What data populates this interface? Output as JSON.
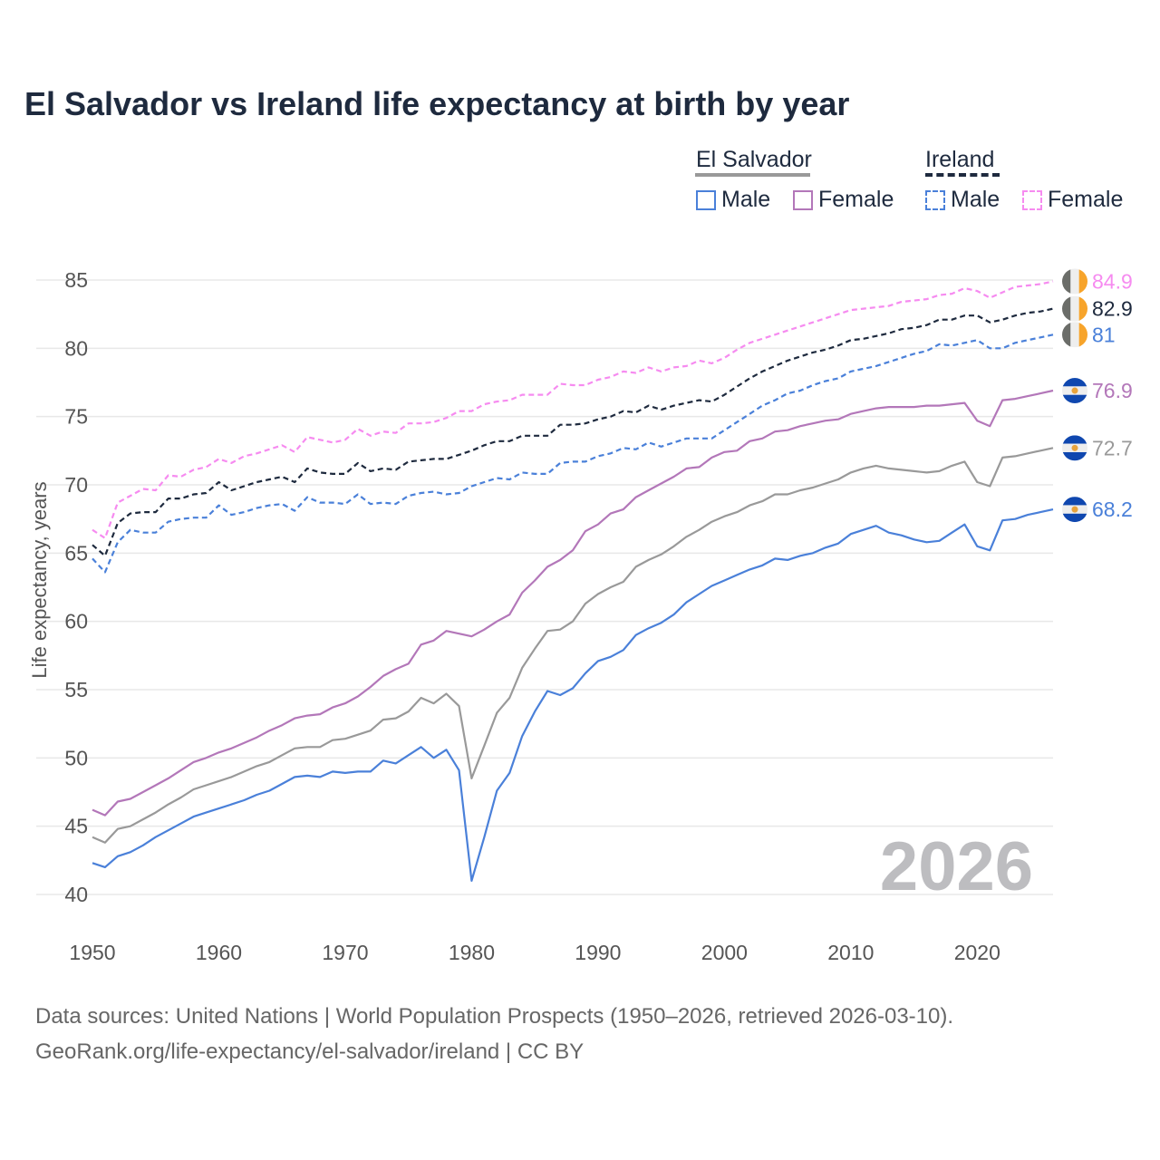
{
  "chart_data": {
    "type": "line",
    "title": "El Salvador vs Ireland life expectancy at birth by year",
    "xlabel": "",
    "ylabel": "Life expectancy, years",
    "xlim": [
      1950,
      2026
    ],
    "ylim": [
      40,
      85
    ],
    "x_ticks": [
      "1950",
      "1960",
      "1970",
      "1980",
      "1990",
      "2000",
      "2010",
      "2020"
    ],
    "y_ticks": [
      "40",
      "45",
      "50",
      "55",
      "60",
      "65",
      "70",
      "75",
      "80",
      "85"
    ],
    "grid": true,
    "watermark_year": "2026",
    "x_start": 1950,
    "legend": {
      "groups": [
        {
          "name": "El Salvador",
          "items": [
            "Male",
            "Female"
          ]
        },
        {
          "name": "Ireland",
          "items": [
            "Male",
            "Female"
          ]
        }
      ],
      "placement": "top-right"
    },
    "series": [
      {
        "name": "Ireland Female",
        "country": "Ireland",
        "color": "#f68bf0",
        "dashed": true,
        "end_label": "84.9",
        "values": [
          66.7,
          66.1,
          68.7,
          69.2,
          69.7,
          69.6,
          70.7,
          70.6,
          71.1,
          71.3,
          71.9,
          71.6,
          72.1,
          72.3,
          72.6,
          72.9,
          72.4,
          73.5,
          73.3,
          73.1,
          73.3,
          74.1,
          73.6,
          73.9,
          73.8,
          74.5,
          74.5,
          74.6,
          74.9,
          75.4,
          75.4,
          75.9,
          76.1,
          76.2,
          76.6,
          76.6,
          76.6,
          77.4,
          77.3,
          77.3,
          77.7,
          77.9,
          78.3,
          78.2,
          78.6,
          78.3,
          78.6,
          78.7,
          79.1,
          78.9,
          79.3,
          79.9,
          80.4,
          80.7,
          81.0,
          81.3,
          81.6,
          81.9,
          82.2,
          82.5,
          82.8,
          82.9,
          83.0,
          83.1,
          83.4,
          83.5,
          83.6,
          83.9,
          84.0,
          84.4,
          84.2,
          83.7,
          84.1,
          84.5,
          84.6,
          84.7,
          84.9
        ]
      },
      {
        "name": "Ireland Total",
        "country": "Ireland",
        "color": "#1e2a3e",
        "dashed": true,
        "end_label": "82.9",
        "values": [
          65.6,
          64.8,
          67.2,
          67.9,
          68.0,
          68.0,
          69.0,
          69.0,
          69.3,
          69.4,
          70.2,
          69.6,
          69.9,
          70.2,
          70.4,
          70.6,
          70.2,
          71.2,
          70.9,
          70.8,
          70.8,
          71.6,
          71.0,
          71.2,
          71.1,
          71.7,
          71.8,
          71.9,
          71.9,
          72.2,
          72.5,
          72.9,
          73.2,
          73.2,
          73.6,
          73.6,
          73.6,
          74.4,
          74.4,
          74.5,
          74.8,
          75.0,
          75.4,
          75.3,
          75.8,
          75.5,
          75.8,
          76.0,
          76.2,
          76.1,
          76.6,
          77.2,
          77.8,
          78.3,
          78.7,
          79.1,
          79.4,
          79.7,
          79.9,
          80.2,
          80.6,
          80.7,
          80.9,
          81.1,
          81.4,
          81.5,
          81.7,
          82.1,
          82.1,
          82.4,
          82.4,
          81.9,
          82.1,
          82.4,
          82.6,
          82.7,
          82.9
        ]
      },
      {
        "name": "Ireland Male",
        "country": "Ireland",
        "color": "#4a80d9",
        "dashed": true,
        "end_label": "81",
        "values": [
          64.6,
          63.6,
          65.8,
          66.7,
          66.5,
          66.5,
          67.3,
          67.5,
          67.6,
          67.6,
          68.5,
          67.8,
          68.0,
          68.3,
          68.5,
          68.6,
          68.1,
          69.1,
          68.7,
          68.7,
          68.6,
          69.3,
          68.6,
          68.7,
          68.6,
          69.2,
          69.4,
          69.5,
          69.3,
          69.4,
          69.9,
          70.2,
          70.5,
          70.4,
          70.9,
          70.8,
          70.8,
          71.6,
          71.7,
          71.7,
          72.1,
          72.3,
          72.7,
          72.6,
          73.1,
          72.8,
          73.1,
          73.4,
          73.4,
          73.4,
          74.0,
          74.6,
          75.2,
          75.8,
          76.2,
          76.7,
          76.9,
          77.3,
          77.6,
          77.8,
          78.3,
          78.5,
          78.7,
          79.0,
          79.3,
          79.6,
          79.8,
          80.3,
          80.2,
          80.4,
          80.6,
          80.0,
          80.0,
          80.4,
          80.6,
          80.8,
          81.0
        ]
      },
      {
        "name": "El Salvador Female",
        "country": "El Salvador",
        "color": "#b377b9",
        "dashed": false,
        "end_label": "76.9",
        "values": [
          46.2,
          45.8,
          46.8,
          47.0,
          47.5,
          48.0,
          48.5,
          49.1,
          49.7,
          50.0,
          50.4,
          50.7,
          51.1,
          51.5,
          52.0,
          52.4,
          52.9,
          53.1,
          53.2,
          53.7,
          54.0,
          54.5,
          55.2,
          56.0,
          56.5,
          56.9,
          58.3,
          58.6,
          59.3,
          59.1,
          58.9,
          59.4,
          60.0,
          60.5,
          62.1,
          63.0,
          64.0,
          64.5,
          65.2,
          66.6,
          67.1,
          67.9,
          68.2,
          69.1,
          69.6,
          70.1,
          70.6,
          71.2,
          71.3,
          72.0,
          72.4,
          72.5,
          73.2,
          73.4,
          73.9,
          74.0,
          74.3,
          74.5,
          74.7,
          74.8,
          75.2,
          75.4,
          75.6,
          75.7,
          75.7,
          75.7,
          75.8,
          75.8,
          75.9,
          76.0,
          74.7,
          74.3,
          76.2,
          76.3,
          76.5,
          76.7,
          76.9
        ]
      },
      {
        "name": "El Salvador Total",
        "country": "El Salvador",
        "color": "#999999",
        "dashed": false,
        "end_label": "72.7",
        "values": [
          44.2,
          43.8,
          44.8,
          45.0,
          45.5,
          46.0,
          46.6,
          47.1,
          47.7,
          48.0,
          48.3,
          48.6,
          49.0,
          49.4,
          49.7,
          50.2,
          50.7,
          50.8,
          50.8,
          51.3,
          51.4,
          51.7,
          52.0,
          52.8,
          52.9,
          53.4,
          54.4,
          54.0,
          54.7,
          53.8,
          48.5,
          50.9,
          53.3,
          54.4,
          56.6,
          58.0,
          59.3,
          59.4,
          60.0,
          61.3,
          62.0,
          62.5,
          62.9,
          64.0,
          64.5,
          64.9,
          65.5,
          66.2,
          66.7,
          67.3,
          67.7,
          68.0,
          68.5,
          68.8,
          69.3,
          69.3,
          69.6,
          69.8,
          70.1,
          70.4,
          70.9,
          71.2,
          71.4,
          71.2,
          71.1,
          71.0,
          70.9,
          71.0,
          71.4,
          71.7,
          70.2,
          69.9,
          72.0,
          72.1,
          72.3,
          72.5,
          72.7
        ]
      },
      {
        "name": "El Salvador Male",
        "country": "El Salvador",
        "color": "#4a80d9",
        "dashed": false,
        "end_label": "68.2",
        "values": [
          42.3,
          42.0,
          42.8,
          43.1,
          43.6,
          44.2,
          44.7,
          45.2,
          45.7,
          46.0,
          46.3,
          46.6,
          46.9,
          47.3,
          47.6,
          48.1,
          48.6,
          48.7,
          48.6,
          49.0,
          48.9,
          49.0,
          49.0,
          49.8,
          49.6,
          50.2,
          50.8,
          50.0,
          50.6,
          49.1,
          41.0,
          44.2,
          47.6,
          48.9,
          51.6,
          53.4,
          54.9,
          54.6,
          55.1,
          56.2,
          57.1,
          57.4,
          57.9,
          59.0,
          59.5,
          59.9,
          60.5,
          61.4,
          62.0,
          62.6,
          63.0,
          63.4,
          63.8,
          64.1,
          64.6,
          64.5,
          64.8,
          65.0,
          65.4,
          65.7,
          66.4,
          66.7,
          67.0,
          66.5,
          66.3,
          66.0,
          65.8,
          65.9,
          66.5,
          67.1,
          65.5,
          65.2,
          67.4,
          67.5,
          67.8,
          68.0,
          68.2
        ]
      }
    ]
  },
  "footer": {
    "line1": "Data sources: United Nations | World Population Prospects (1950–2026, retrieved 2026-03-10).",
    "line2": "GeoRank.org/life-expectancy/el-salvador/ireland | CC BY"
  }
}
